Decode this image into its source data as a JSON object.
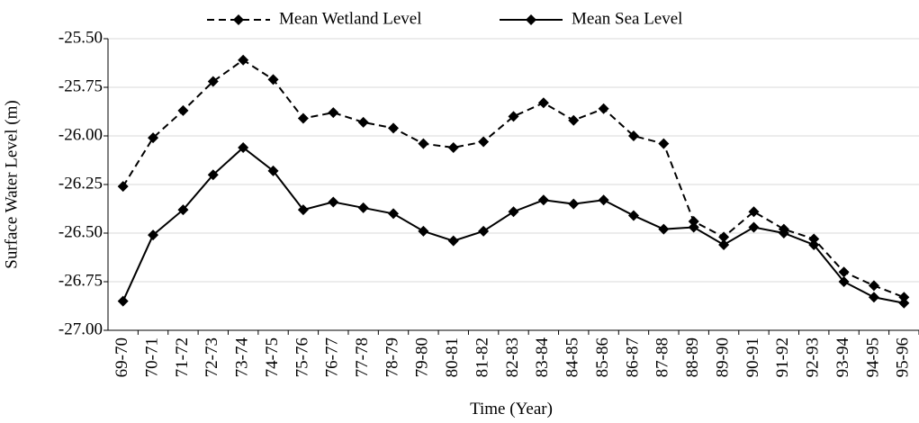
{
  "chart_data": {
    "type": "line",
    "x_label": "Time (Year)",
    "y_label": "Surface Water Level (m)",
    "categories": [
      "69-70",
      "70-71",
      "71-72",
      "72-73",
      "73-74",
      "74-75",
      "75-76",
      "76-77",
      "77-78",
      "78-79",
      "79-80",
      "80-81",
      "81-82",
      "82-83",
      "83-84",
      "84-85",
      "85-86",
      "86-87",
      "87-88",
      "88-89",
      "89-90",
      "90-91",
      "91-92",
      "92-93",
      "93-94",
      "94-95",
      "95-96"
    ],
    "series": [
      {
        "name": "Mean Wetland Level",
        "color": "#000000",
        "line_style": "dashed",
        "values": [
          -26.26,
          -26.01,
          -25.87,
          -25.72,
          -25.61,
          -25.71,
          -25.91,
          -25.88,
          -25.93,
          -25.96,
          -26.04,
          -26.06,
          -26.03,
          -25.9,
          -25.83,
          -25.92,
          -25.86,
          -26.0,
          -26.04,
          -26.44,
          -26.52,
          -26.39,
          -26.48,
          -26.53,
          -26.7,
          -26.77,
          -26.83
        ]
      },
      {
        "name": "Mean Sea Level",
        "color": "#000000",
        "line_style": "solid",
        "values": [
          -26.85,
          -26.51,
          -26.38,
          -26.2,
          -26.06,
          -26.18,
          -26.38,
          -26.34,
          -26.37,
          -26.4,
          -26.49,
          -26.54,
          -26.49,
          -26.39,
          -26.33,
          -26.35,
          -26.33,
          -26.41,
          -26.48,
          -26.47,
          -26.56,
          -26.47,
          -26.5,
          -26.56,
          -26.75,
          -26.83,
          -26.86
        ]
      }
    ],
    "ylim": [
      -27.0,
      -25.5
    ],
    "yticks": [
      {
        "value": -27.0,
        "label": "-27.00"
      },
      {
        "value": -26.75,
        "label": "-26.75"
      },
      {
        "value": -26.5,
        "label": "-26.50"
      },
      {
        "value": -26.25,
        "label": "-26.25"
      },
      {
        "value": -26.0,
        "label": "-26.00"
      },
      {
        "value": -25.75,
        "label": "-25.75"
      },
      {
        "value": -25.5,
        "label": "-25.50"
      }
    ],
    "grid": true,
    "legend": "top"
  }
}
